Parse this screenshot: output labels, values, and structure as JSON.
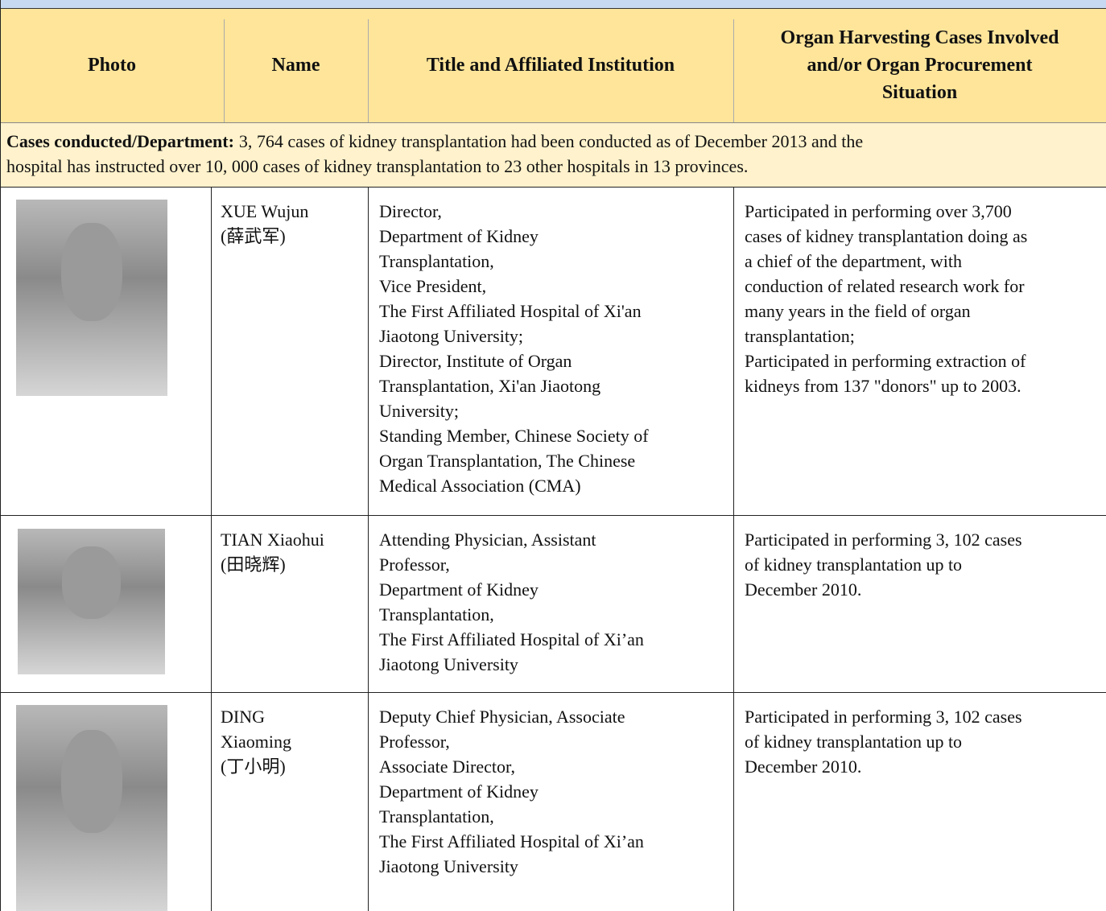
{
  "table": {
    "headers": [
      "Photo",
      "Name",
      "Title and Affiliated Institution",
      [
        "Organ Harvesting Cases Involved",
        "and/or Organ Procurement",
        "Situation"
      ]
    ],
    "cases": {
      "label": "Cases conducted/Department:",
      "text": [
        "3, 764 cases of kidney transplantation had been conducted as of December 2013 and the",
        "hospital has instructed over 10, 000 cases of kidney transplantation to 23 other hospitals in 13 provinces."
      ]
    },
    "rows": [
      {
        "name": [
          "XUE Wujun",
          "(薛武军)"
        ],
        "title": [
          "Director,",
          "Department of Kidney",
          "Transplantation,",
          "Vice President,",
          "The First Affiliated Hospital of Xi'an",
          "Jiaotong University;",
          "Director, Institute of Organ",
          "Transplantation, Xi'an Jiaotong",
          "University;",
          "Standing Member, Chinese Society of",
          "Organ Transplantation, The Chinese",
          "Medical  Association (CMA)"
        ],
        "situation": [
          "Participated in performing over 3,700",
          "cases of kidney transplantation doing as",
          "a chief of the department, with",
          "conduction of related research work for",
          "many years in the field of organ",
          "transplantation;",
          "Participated in performing extraction of",
          "kidneys from 137 \"donors\" up to 2003."
        ]
      },
      {
        "name": [
          "TIAN Xiaohui",
          "(田晓辉)"
        ],
        "title": [
          "Attending Physician, Assistant",
          "Professor,",
          "Department of Kidney",
          "Transplantation,",
          "The First Affiliated Hospital of Xi’an",
          "Jiaotong University"
        ],
        "situation": [
          "Participated in performing 3, 102 cases",
          "of kidney transplantation up to",
          "December 2010."
        ]
      },
      {
        "name": [
          "DING",
          "Xiaoming",
          "(丁小明)"
        ],
        "title": [
          "Deputy Chief Physician, Associate",
          "Professor,",
          "Associate Director,",
          "Department of Kidney",
          "Transplantation,",
          "The First Affiliated Hospital of Xi’an",
          "Jiaotong University"
        ],
        "situation": [
          "Participated in performing 3, 102 cases",
          "of kidney transplantation up to",
          "December 2010."
        ]
      }
    ]
  }
}
